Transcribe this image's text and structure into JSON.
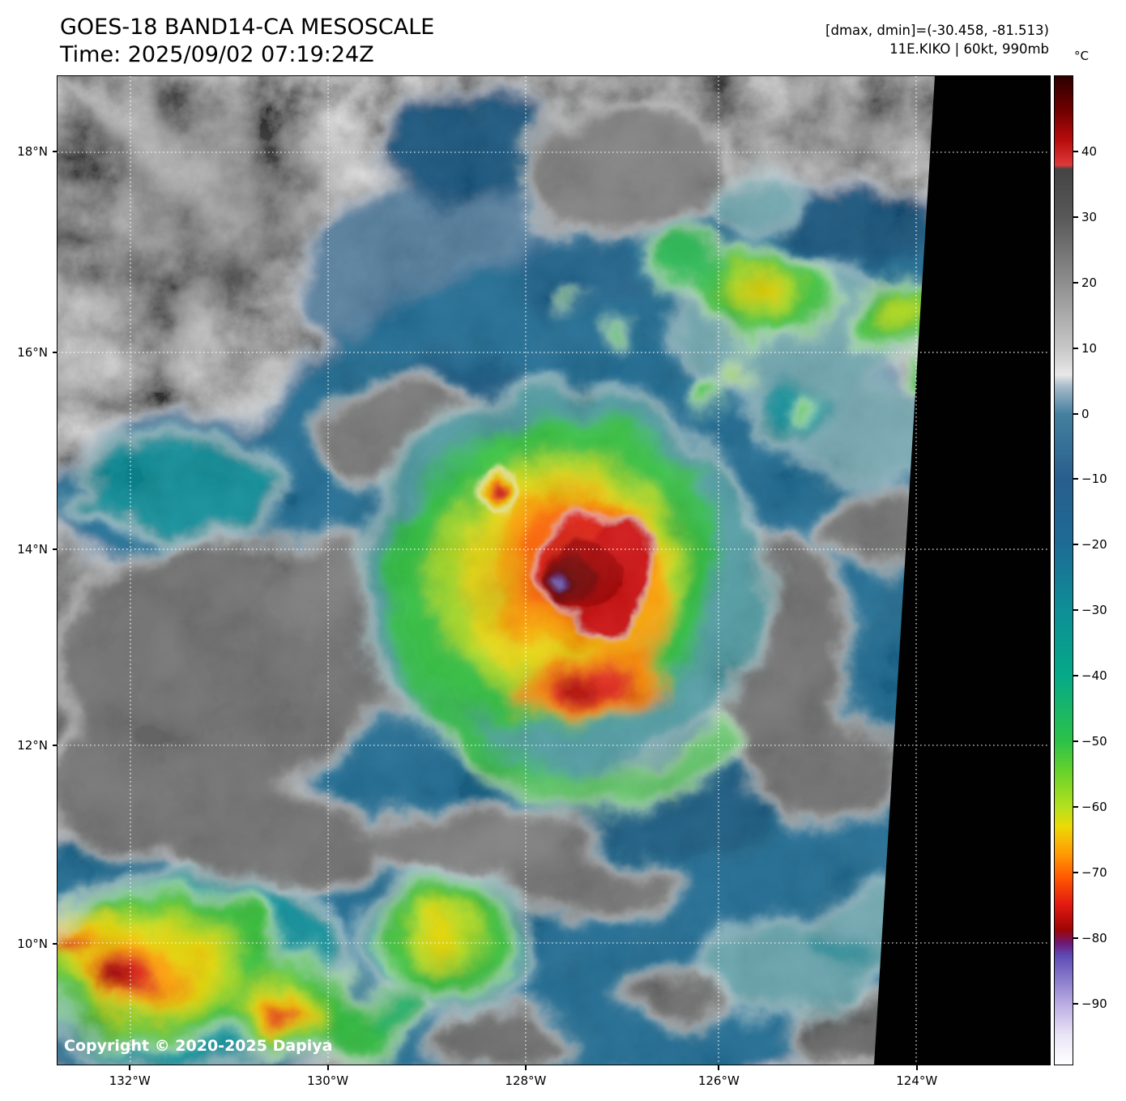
{
  "header": {
    "title": "GOES-18 BAND14-CA MESOSCALE",
    "time_line": "Time: 2025/09/02 07:19:24Z",
    "dmax_dmin": "[dmax, dmin]=(-30.458, -81.513)",
    "storm_info": "11E.KIKO | 60kt, 990mb"
  },
  "colorbar": {
    "unit": "°C",
    "ticks": [
      {
        "label": "40",
        "pct": 7.68
      },
      {
        "label": "30",
        "pct": 14.3
      },
      {
        "label": "20",
        "pct": 20.93
      },
      {
        "label": "10",
        "pct": 27.55
      },
      {
        "label": "0",
        "pct": 34.17
      },
      {
        "label": "−10",
        "pct": 40.79
      },
      {
        "label": "−20",
        "pct": 47.42
      },
      {
        "label": "−30",
        "pct": 54.04
      },
      {
        "label": "−40",
        "pct": 60.66
      },
      {
        "label": "−50",
        "pct": 67.28
      },
      {
        "label": "−60",
        "pct": 73.91
      },
      {
        "label": "−70",
        "pct": 80.53
      },
      {
        "label": "−80",
        "pct": 87.15
      },
      {
        "label": "−90",
        "pct": 93.77
      }
    ],
    "stops": [
      {
        "pct": 0,
        "color": "#2b0000"
      },
      {
        "pct": 3.5,
        "color": "#700000"
      },
      {
        "pct": 6.5,
        "color": "#b80c0c"
      },
      {
        "pct": 9.0,
        "color": "#de3a3a"
      },
      {
        "pct": 9.4,
        "color": "#444444"
      },
      {
        "pct": 14.3,
        "color": "#585858"
      },
      {
        "pct": 20.9,
        "color": "#8e8e8e"
      },
      {
        "pct": 27.6,
        "color": "#c8c8c8"
      },
      {
        "pct": 30.2,
        "color": "#e8e8e8"
      },
      {
        "pct": 31.4,
        "color": "#a6bac9"
      },
      {
        "pct": 34.2,
        "color": "#44809f"
      },
      {
        "pct": 40.8,
        "color": "#285e8d"
      },
      {
        "pct": 47.4,
        "color": "#1d6b95"
      },
      {
        "pct": 54.0,
        "color": "#0e8e96"
      },
      {
        "pct": 60.7,
        "color": "#05a988"
      },
      {
        "pct": 67.3,
        "color": "#2cc247"
      },
      {
        "pct": 70.6,
        "color": "#6cd32a"
      },
      {
        "pct": 73.9,
        "color": "#b3e01e"
      },
      {
        "pct": 75.9,
        "color": "#ecda07"
      },
      {
        "pct": 78.5,
        "color": "#ff9f04"
      },
      {
        "pct": 81.2,
        "color": "#ff5502"
      },
      {
        "pct": 83.8,
        "color": "#e21a12"
      },
      {
        "pct": 86.4,
        "color": "#9c0505"
      },
      {
        "pct": 87.7,
        "color": "#6f1875"
      },
      {
        "pct": 89.0,
        "color": "#5e4cb5"
      },
      {
        "pct": 91.8,
        "color": "#9184cf"
      },
      {
        "pct": 93.8,
        "color": "#b9abe2"
      },
      {
        "pct": 97.0,
        "color": "#eae4f6"
      },
      {
        "pct": 100,
        "color": "#ffffff"
      }
    ]
  },
  "map": {
    "lat_ticks": [
      {
        "label": "18°N",
        "pct": 7.7
      },
      {
        "label": "16°N",
        "pct": 27.95
      },
      {
        "label": "14°N",
        "pct": 47.87
      },
      {
        "label": "12°N",
        "pct": 67.7
      },
      {
        "label": "10°N",
        "pct": 87.7
      }
    ],
    "lon_ticks": [
      {
        "label": "132°W",
        "pct": 7.35
      },
      {
        "label": "130°W",
        "pct": 27.27
      },
      {
        "label": "128°W",
        "pct": 47.18
      },
      {
        "label": "126°W",
        "pct": 66.61
      },
      {
        "label": "124°W",
        "pct": 86.53
      }
    ],
    "copyright": "Copyright © 2020-2025 Dapiya"
  }
}
